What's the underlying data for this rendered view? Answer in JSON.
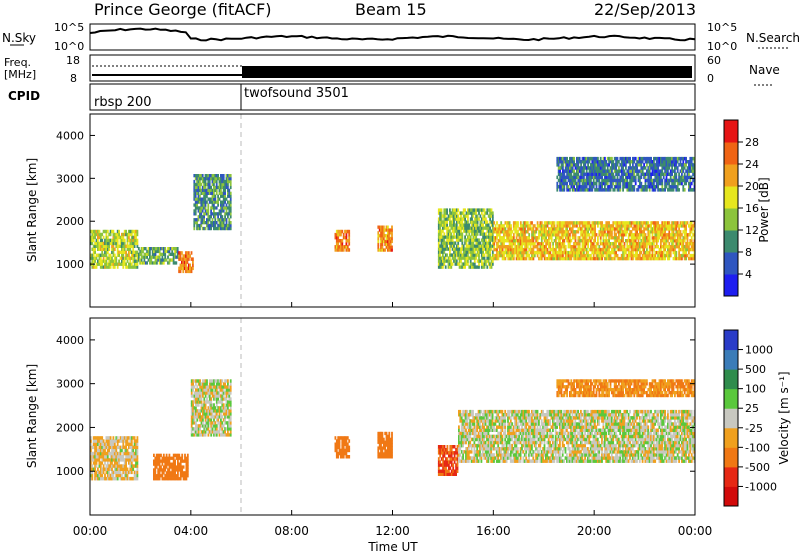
{
  "header": {
    "station": "Prince George (fitACF)",
    "beam": "Beam 15",
    "date": "22/Sep/2013"
  },
  "noise_panel": {
    "left_label": "N.Sky",
    "right_label": "N.Search",
    "left_ticks": [
      "10^5",
      "10^0"
    ],
    "right_ticks": [
      "10^5",
      "10^0"
    ]
  },
  "freq_panel": {
    "left_label_1": "Freq.",
    "left_label_2": "[MHz]",
    "right_label": "Nave",
    "left_ticks": [
      "18",
      "8"
    ],
    "right_ticks": [
      "60",
      "0"
    ]
  },
  "cpid_panel": {
    "label": "CPID",
    "segments": [
      {
        "name": "rbsp 200",
        "start_hour": 0,
        "end_hour": 6
      },
      {
        "name": "twofsound 3501",
        "start_hour": 6,
        "end_hour": 24
      }
    ]
  },
  "axes": {
    "ylabel": "Slant Range [km]",
    "xlabel": "Time UT",
    "y_ticks": [
      "1000",
      "2000",
      "3000",
      "4000"
    ],
    "x_ticks": [
      "00:00",
      "04:00",
      "08:00",
      "12:00",
      "16:00",
      "20:00",
      "00:00"
    ]
  },
  "colorbars": {
    "power": {
      "label": "Power [dB]",
      "ticks": [
        "4",
        "8",
        "12",
        "16",
        "20",
        "24",
        "28"
      ],
      "colors": [
        "#1e1ef0",
        "#2f56c0",
        "#3c8a6e",
        "#8cc43c",
        "#e6e61e",
        "#f0a01e",
        "#f06414",
        "#e61414"
      ]
    },
    "velocity": {
      "label": "Velocity [m s⁻¹]",
      "ticks": [
        "1000",
        "500",
        "100",
        "25",
        "-25",
        "-100",
        "-500",
        "-1000"
      ],
      "colors": [
        "#2a3cc8",
        "#3b7cb8",
        "#2f8c4c",
        "#5ac83c",
        "#c8c8c0",
        "#f0a01e",
        "#f07814",
        "#e62814",
        "#d20a0a"
      ]
    }
  },
  "chart_data": [
    {
      "type": "heatmap",
      "title": "Power [dB]",
      "x_unit": "hour UT",
      "ylim": [
        0,
        4500
      ],
      "xlim": [
        0,
        24
      ],
      "echo_regions": [
        {
          "t": [
            0.0,
            1.9
          ],
          "range": [
            900,
            1800
          ],
          "power": 16
        },
        {
          "t": [
            1.9,
            3.5
          ],
          "range": [
            1000,
            1400
          ],
          "power": 12
        },
        {
          "t": [
            3.5,
            4.1
          ],
          "range": [
            800,
            1300
          ],
          "power": 24
        },
        {
          "t": [
            4.1,
            5.6
          ],
          "range": [
            1800,
            3100
          ],
          "power": 10
        },
        {
          "t": [
            9.7,
            10.3
          ],
          "range": [
            1300,
            1800
          ],
          "power": 24
        },
        {
          "t": [
            11.4,
            12.0
          ],
          "range": [
            1300,
            1900
          ],
          "power": 24
        },
        {
          "t": [
            13.8,
            16.0
          ],
          "range": [
            900,
            2300
          ],
          "power": 14
        },
        {
          "t": [
            16.0,
            24.0
          ],
          "range": [
            1100,
            2000
          ],
          "power": 20
        },
        {
          "t": [
            18.5,
            24.0
          ],
          "range": [
            2700,
            3500
          ],
          "power": 8
        }
      ]
    },
    {
      "type": "heatmap",
      "title": "Velocity [m s⁻¹]",
      "x_unit": "hour UT",
      "ylim": [
        0,
        4500
      ],
      "xlim": [
        0,
        24
      ],
      "echo_regions": [
        {
          "t": [
            0.0,
            1.9
          ],
          "range": [
            800,
            1800
          ],
          "velocity": -25
        },
        {
          "t": [
            2.5,
            3.9
          ],
          "range": [
            800,
            1400
          ],
          "velocity": -300
        },
        {
          "t": [
            4.0,
            5.6
          ],
          "range": [
            1800,
            3100
          ],
          "velocity": 0
        },
        {
          "t": [
            9.7,
            10.3
          ],
          "range": [
            1300,
            1800
          ],
          "velocity": -200
        },
        {
          "t": [
            11.4,
            12.0
          ],
          "range": [
            1300,
            1900
          ],
          "velocity": -200
        },
        {
          "t": [
            13.8,
            14.6
          ],
          "range": [
            900,
            1600
          ],
          "velocity": -500
        },
        {
          "t": [
            14.6,
            24.0
          ],
          "range": [
            1200,
            2400
          ],
          "velocity": 0
        },
        {
          "t": [
            18.5,
            24.0
          ],
          "range": [
            2700,
            3100
          ],
          "velocity": -100
        }
      ]
    }
  ]
}
